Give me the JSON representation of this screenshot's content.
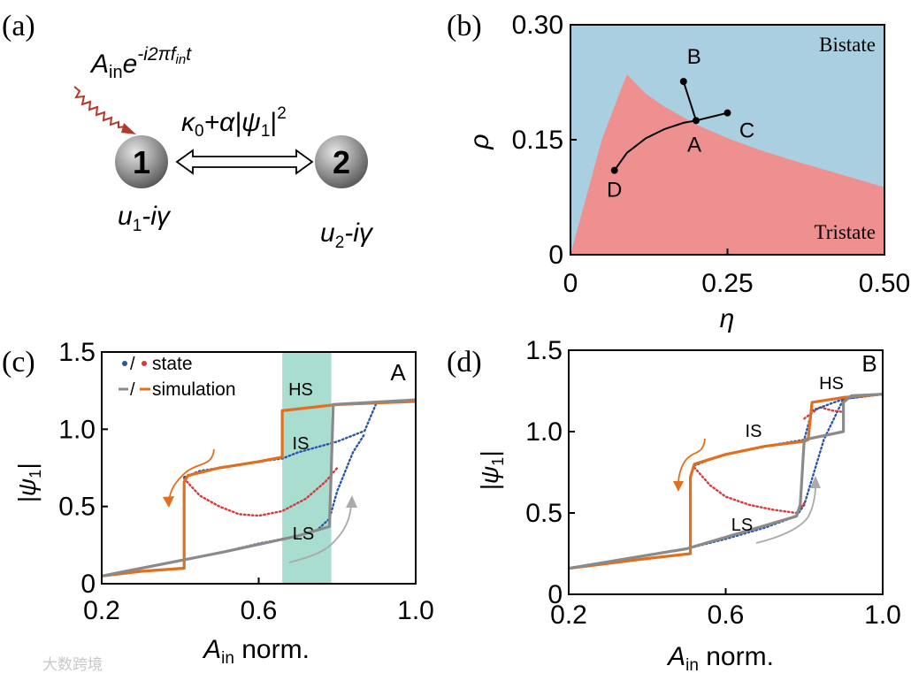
{
  "panel_a": {
    "tag": "(a)",
    "drive": {
      "A": "A",
      "A_sub": "in",
      "e": "e",
      "exp": "-i2πf",
      "exp_sub": "in",
      "exp_t": "t"
    },
    "coupling": {
      "k": "κ",
      "k_sub": "0",
      "plus": "+α|ψ",
      "psi_sub": "1",
      "bar": "|",
      "sq": "2"
    },
    "res1": {
      "label": "1",
      "u": "u",
      "u_sub": "1",
      "tail": "-iγ"
    },
    "res2": {
      "label": "2",
      "u": "u",
      "u_sub": "2",
      "tail": "-iγ"
    },
    "colors": {
      "drive": "#b03a2e",
      "sphere": "#8a8a8a"
    }
  },
  "chart_data": [
    {
      "panel": "(b)",
      "type": "area",
      "xlabel": "η",
      "ylabel": "ρ",
      "xlim": [
        0,
        0.5
      ],
      "ylim": [
        0,
        0.3
      ],
      "xticks": [
        "0",
        "0.25",
        "0.50"
      ],
      "yticks": [
        "0",
        "0.15",
        "0.30"
      ],
      "regions": [
        {
          "name": "Bistate",
          "color": "#a9cfe0"
        },
        {
          "name": "Tristate",
          "color": "#ee9090"
        }
      ],
      "boundary": {
        "x": [
          0,
          0.02,
          0.05,
          0.08,
          0.09,
          0.12,
          0.15,
          0.2,
          0.25,
          0.3,
          0.35,
          0.4,
          0.45,
          0.5
        ],
        "y": [
          0,
          0.06,
          0.15,
          0.215,
          0.235,
          0.21,
          0.193,
          0.17,
          0.152,
          0.137,
          0.124,
          0.112,
          0.1,
          0.088
        ]
      },
      "points": [
        {
          "label": "B",
          "x": 0.18,
          "y": 0.226
        },
        {
          "label": "C",
          "x": 0.25,
          "y": 0.185
        },
        {
          "label": "A",
          "x": 0.2,
          "y": 0.175
        },
        {
          "label": "D",
          "x": 0.07,
          "y": 0.11
        }
      ],
      "curve_D_A_C": {
        "x": [
          0.07,
          0.09,
          0.12,
          0.15,
          0.18,
          0.2,
          0.23,
          0.25
        ],
        "y": [
          0.11,
          0.133,
          0.152,
          0.164,
          0.172,
          0.175,
          0.181,
          0.185
        ]
      }
    },
    {
      "panel": "(c)",
      "type": "line",
      "corner_label": "A",
      "xlabel": "A",
      "xlabel_sub": "in",
      "xlabel_tail": " norm.",
      "ylabel": "|ψ",
      "ylabel_sub": "1",
      "ylabel_tail": "|",
      "xlim": [
        0.2,
        1.0
      ],
      "ylim": [
        0,
        1.5
      ],
      "xticks": [
        "0.2",
        "0.6",
        "1.0"
      ],
      "yticks": [
        "0",
        "0.5",
        "1.0",
        "1.5"
      ],
      "legend": {
        "state": "state",
        "simulation": "simulation",
        "sep": "/"
      },
      "branch_labels": [
        "HS",
        "IS",
        "LS"
      ],
      "shade": {
        "x0": 0.66,
        "x1": 0.785,
        "color": "#a8ddd0"
      },
      "series": [
        {
          "name": "state",
          "style": "stable",
          "color": "#2a56a8",
          "x": [
            0.2,
            0.3,
            0.4,
            0.5,
            0.6,
            0.7,
            0.75,
            0.78,
            0.8,
            0.84,
            0.87
          ],
          "y": [
            0.05,
            0.1,
            0.15,
            0.2,
            0.26,
            0.31,
            0.35,
            0.42,
            0.6,
            0.85,
            0.97
          ]
        },
        {
          "name": "state",
          "style": "unstable",
          "color": "#d63a3a",
          "x": [
            0.41,
            0.45,
            0.5,
            0.55,
            0.6,
            0.66,
            0.72,
            0.77,
            0.8
          ],
          "y": [
            0.68,
            0.57,
            0.5,
            0.45,
            0.44,
            0.47,
            0.55,
            0.66,
            0.75
          ]
        },
        {
          "name": "state",
          "style": "upper",
          "color": "#2a56a8",
          "x": [
            0.41,
            0.45,
            0.5,
            0.6,
            0.66,
            0.7,
            0.8,
            0.85,
            0.87,
            0.9,
            1.0
          ],
          "y": [
            0.69,
            0.73,
            0.75,
            0.79,
            0.81,
            0.85,
            0.92,
            0.97,
            0.99,
            1.17,
            1.19
          ]
        },
        {
          "name": "simulation",
          "style": "down-sweep",
          "color": "#e0701f",
          "x": [
            1.0,
            0.8,
            0.66,
            0.66,
            0.6,
            0.5,
            0.42,
            0.41,
            0.41,
            0.3,
            0.2
          ],
          "y": [
            1.18,
            1.16,
            1.12,
            0.82,
            0.79,
            0.75,
            0.7,
            0.66,
            0.1,
            0.08,
            0.05
          ]
        },
        {
          "name": "simulation",
          "style": "up-sweep",
          "color": "#8a8a8a",
          "x": [
            0.2,
            0.5,
            0.7,
            0.78,
            0.785,
            0.79,
            1.0
          ],
          "y": [
            0.05,
            0.2,
            0.31,
            0.37,
            0.75,
            1.16,
            1.19
          ]
        }
      ]
    },
    {
      "panel": "(d)",
      "type": "line",
      "corner_label": "B",
      "xlabel": "A",
      "xlabel_sub": "in",
      "xlabel_tail": " norm.",
      "ylabel": "|ψ",
      "ylabel_sub": "1",
      "ylabel_tail": "|",
      "xlim": [
        0.2,
        1.0
      ],
      "ylim": [
        0,
        1.5
      ],
      "xticks": [
        "0.2",
        "0.6",
        "1.0"
      ],
      "yticks": [
        "0",
        "0.5",
        "1.0",
        "1.5"
      ],
      "branch_labels": [
        "HS",
        "IS",
        "LS"
      ],
      "series": [
        {
          "name": "state",
          "style": "stable",
          "color": "#2a56a8",
          "x": [
            0.2,
            0.3,
            0.4,
            0.5,
            0.6,
            0.7,
            0.78,
            0.8,
            0.85,
            0.9,
            1.0
          ],
          "y": [
            0.16,
            0.2,
            0.24,
            0.28,
            0.34,
            0.41,
            0.48,
            0.55,
            0.95,
            1.2,
            1.23
          ]
        },
        {
          "name": "state",
          "style": "unstable",
          "color": "#d63a3a",
          "x": [
            0.52,
            0.56,
            0.6,
            0.66,
            0.72,
            0.78,
            0.8
          ],
          "y": [
            0.78,
            0.67,
            0.6,
            0.55,
            0.52,
            0.5,
            0.56
          ]
        },
        {
          "name": "state",
          "style": "unstable",
          "color": "#d63a3a",
          "x": [
            0.8,
            0.84,
            0.87,
            0.9
          ],
          "y": [
            1.08,
            1.15,
            1.13,
            1.12
          ]
        },
        {
          "name": "state",
          "style": "upper",
          "color": "#2a56a8",
          "x": [
            0.52,
            0.56,
            0.6,
            0.7,
            0.8,
            0.82,
            0.9,
            1.0
          ],
          "y": [
            0.79,
            0.83,
            0.86,
            0.91,
            0.95,
            1.13,
            1.2,
            1.23
          ]
        },
        {
          "name": "simulation",
          "style": "down-sweep",
          "color": "#e0701f",
          "x": [
            1.0,
            0.9,
            0.82,
            0.81,
            0.8,
            0.7,
            0.6,
            0.52,
            0.51,
            0.51,
            0.4,
            0.2
          ],
          "y": [
            1.23,
            1.21,
            1.18,
            0.95,
            0.94,
            0.91,
            0.86,
            0.8,
            0.72,
            0.25,
            0.22,
            0.16
          ]
        },
        {
          "name": "simulation",
          "style": "up-sweep",
          "color": "#8a8a8a",
          "x": [
            0.2,
            0.5,
            0.78,
            0.79,
            0.8,
            0.9,
            0.9,
            0.92,
            1.0
          ],
          "y": [
            0.16,
            0.28,
            0.48,
            0.55,
            0.95,
            1.0,
            1.18,
            1.22,
            1.23
          ]
        }
      ]
    }
  ],
  "watermark": "大数跨境"
}
